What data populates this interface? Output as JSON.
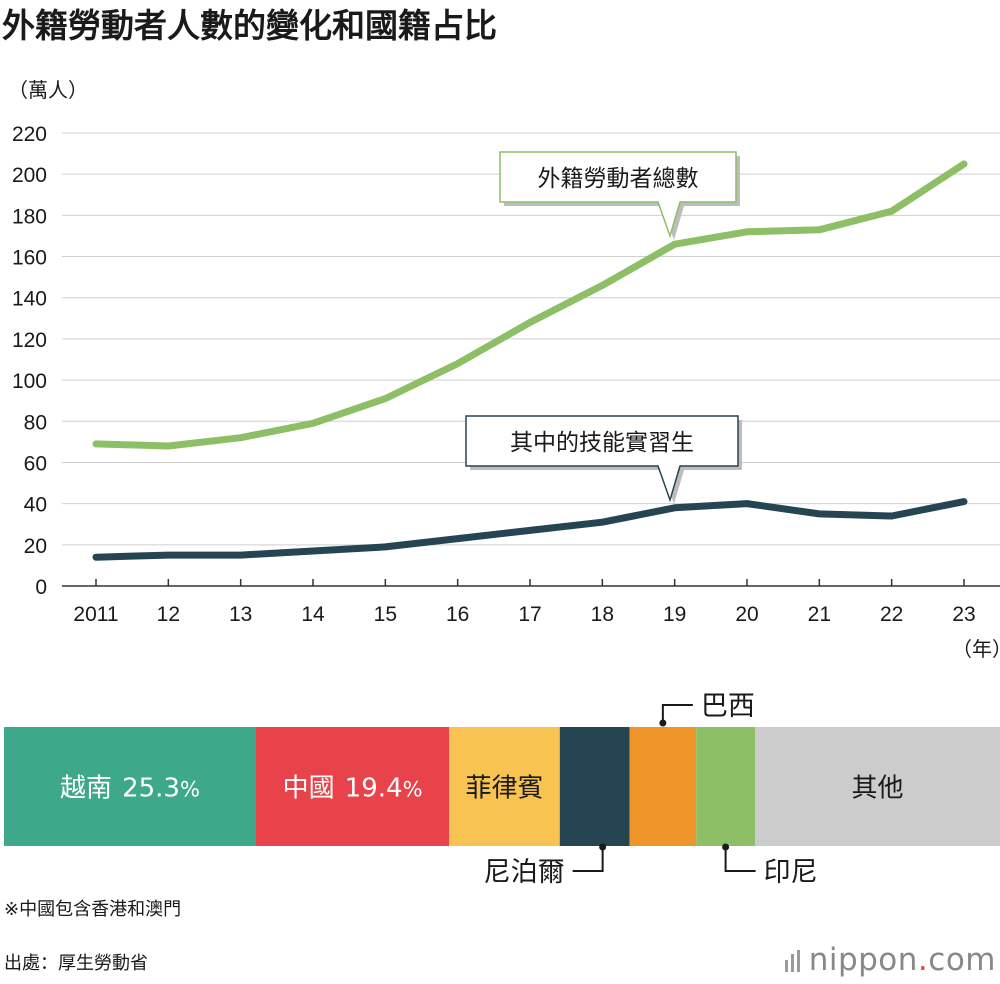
{
  "title": "外籍勞動者人數的變化和國籍占比",
  "chart_data": [
    {
      "type": "line",
      "ylabel": "（萬人）",
      "xlabel": "（年）",
      "ylim": [
        0,
        220
      ],
      "yticks": [
        0,
        20,
        40,
        60,
        80,
        100,
        120,
        140,
        160,
        180,
        200,
        220
      ],
      "categories": [
        "2011",
        "12",
        "13",
        "14",
        "15",
        "16",
        "17",
        "18",
        "19",
        "20",
        "21",
        "22",
        "23"
      ],
      "grid": true,
      "series": [
        {
          "name": "外籍勞動者總數",
          "color": "#8dbf67",
          "values": [
            69,
            68,
            72,
            79,
            91,
            108,
            128,
            146,
            166,
            172,
            173,
            182,
            205
          ]
        },
        {
          "name": "其中的技能實習生",
          "color": "#254552",
          "values": [
            14,
            15,
            15,
            17,
            19,
            23,
            27,
            31,
            38,
            40,
            35,
            34,
            41
          ]
        }
      ]
    },
    {
      "type": "bar",
      "orientation": "horizontal-stacked",
      "unit": "%",
      "segments": [
        {
          "name": "越南",
          "value": 25.3,
          "value_label": "25.3",
          "color": "#3ea98a"
        },
        {
          "name": "中國",
          "value": 19.4,
          "value_label": "19.4",
          "color": "#e8434a"
        },
        {
          "name": "菲律賓",
          "value": 11.1,
          "color": "#f8c350"
        },
        {
          "name": "尼泊爾",
          "value": 7.0,
          "color": "#254552"
        },
        {
          "name": "巴西",
          "value": 6.7,
          "color": "#f0952a"
        },
        {
          "name": "印尼",
          "value": 5.9,
          "color": "#8dbf67"
        },
        {
          "name": "其他",
          "value": 24.6,
          "color": "#cccccc"
        }
      ]
    }
  ],
  "note": "※中國包含香港和澳門",
  "source": "出處：厚生勞動省",
  "brand": {
    "name": "nippon",
    "dot": ".",
    "tld": "com"
  }
}
